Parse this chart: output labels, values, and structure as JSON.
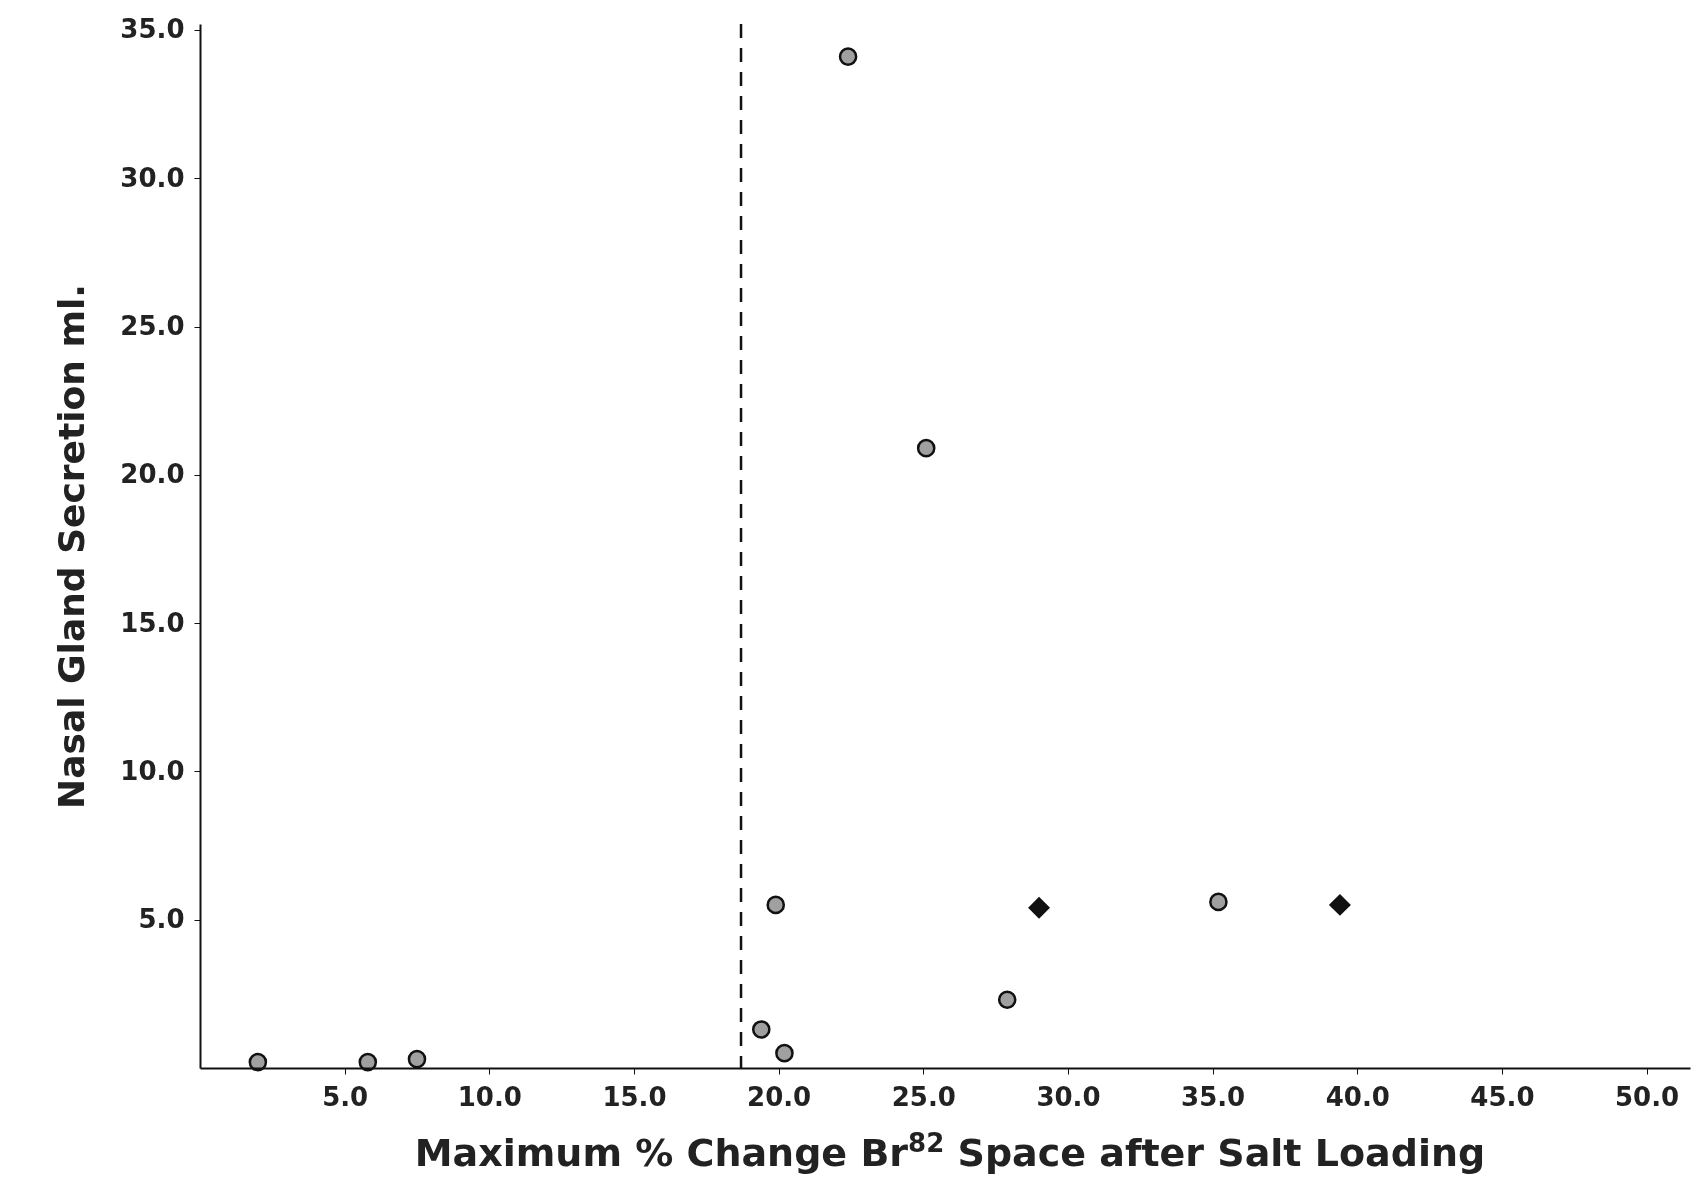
{
  "chart_data": {
    "type": "scatter",
    "xlabel": "Maximum % Change Br$^{82}$ Space after Salt Loading",
    "ylabel": "Nasal Gland Secretion ml.",
    "xlim": [
      0,
      51.5
    ],
    "ylim": [
      0,
      35.2
    ],
    "xticks": [
      {
        "value": 5,
        "label": "5.0"
      },
      {
        "value": 10,
        "label": "10.0"
      },
      {
        "value": 15,
        "label": "15.0"
      },
      {
        "value": 20,
        "label": "20.0"
      },
      {
        "value": 25,
        "label": "25.0"
      },
      {
        "value": 30,
        "label": "30.0"
      },
      {
        "value": 35,
        "label": "35.0"
      },
      {
        "value": 40,
        "label": "40.0"
      },
      {
        "value": 45,
        "label": "45.0"
      },
      {
        "value": 50,
        "label": "50.0"
      }
    ],
    "yticks": [
      {
        "value": 5,
        "label": "5.0"
      },
      {
        "value": 10,
        "label": "10.0"
      },
      {
        "value": 15,
        "label": "15.0"
      },
      {
        "value": 20,
        "label": "20.0"
      },
      {
        "value": 25,
        "label": "25.0"
      },
      {
        "value": 30,
        "label": "30.0"
      },
      {
        "value": 35,
        "label": "35.0"
      }
    ],
    "grid": false,
    "series": [
      {
        "color": "#111111",
        "marker": "circle",
        "x": [
          2.0,
          5.8,
          7.5,
          19.4,
          19.9,
          20.2,
          22.4,
          25.1,
          27.9,
          35.2
        ],
        "values": [
          0.2,
          0.2,
          0.3,
          1.3,
          5.5,
          0.5,
          34.1,
          20.9,
          2.3,
          5.6
        ]
      },
      {
        "color": "#111111",
        "marker": "diamond",
        "x": [
          29.0,
          39.4
        ],
        "values": [
          5.4,
          5.5
        ]
      }
    ],
    "ref_lines": [
      {
        "axis": "x",
        "value": 18.7,
        "line_style": "dashed",
        "color": "#111111"
      }
    ]
  }
}
